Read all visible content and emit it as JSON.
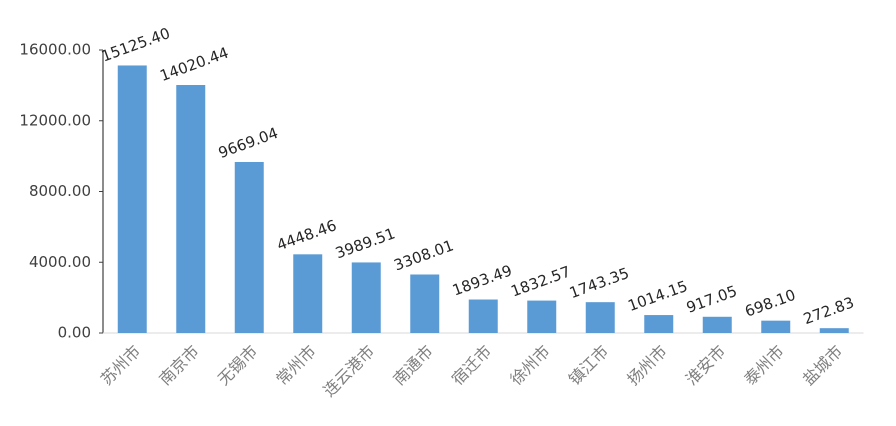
{
  "chart_data": {
    "type": "bar",
    "categories": [
      "苏州市",
      "南京市",
      "无锡市",
      "常州市",
      "连云港市",
      "南通市",
      "宿迁市",
      "徐州市",
      "镇江市",
      "扬州市",
      "淮安市",
      "泰州市",
      "盐城市"
    ],
    "values": [
      15125.4,
      14020.44,
      9669.04,
      4448.46,
      3989.51,
      3308.01,
      1893.49,
      1832.57,
      1743.35,
      1014.15,
      917.05,
      698.1,
      272.83
    ],
    "value_labels": [
      "15125.40",
      "14020.44",
      "9669.04",
      "4448.46",
      "3989.51",
      "3308.01",
      "1893.49",
      "1832.57",
      "1743.35",
      "1014.15",
      "917.05",
      "698.10",
      "272.83"
    ],
    "color": "#5b9bd5",
    "ylim": [
      0,
      16000
    ],
    "yticks": [
      {
        "value": 0,
        "label": "0.00"
      },
      {
        "value": 4000,
        "label": "4000.00"
      },
      {
        "value": 8000,
        "label": "8000.00"
      },
      {
        "value": 12000,
        "label": "12000.00"
      },
      {
        "value": 16000,
        "label": "16000.00"
      }
    ],
    "grid": false
  }
}
